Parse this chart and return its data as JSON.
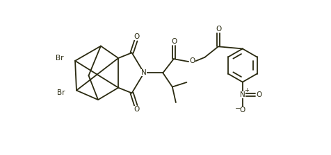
{
  "background_color": "#ffffff",
  "line_color": "#2a2a10",
  "text_color": "#2a2a10",
  "line_width": 1.3,
  "font_size": 7.5,
  "xlim": [
    0,
    9.5
  ],
  "ylim": [
    0,
    4.2
  ]
}
